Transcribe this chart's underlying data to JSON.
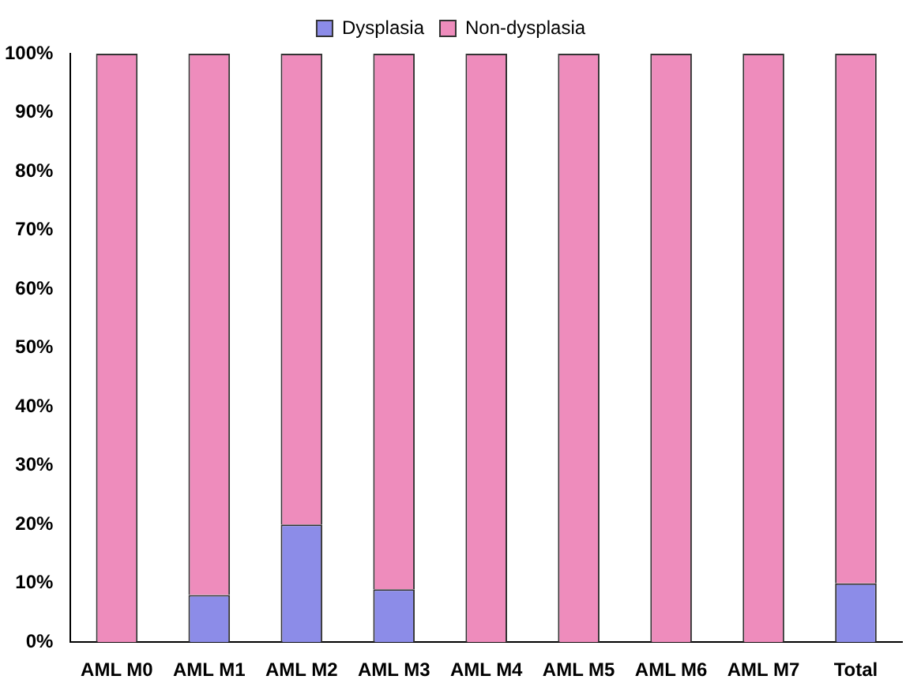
{
  "chart_data": {
    "type": "bar",
    "stacked": true,
    "legend": "top",
    "grid": false,
    "categories": [
      "AML M0",
      "AML M1",
      "AML M2",
      "AML M3",
      "AML M4",
      "AML M5",
      "AML M6",
      "AML M7",
      "Total"
    ],
    "series": [
      {
        "name": "Dysplasia",
        "color": "#8c8ce8",
        "values": [
          0,
          8,
          20,
          9,
          0,
          0,
          0,
          0,
          10
        ]
      },
      {
        "name": "Non-dysplasia",
        "color": "#ee8cbc",
        "values": [
          100,
          92,
          80,
          91,
          100,
          100,
          100,
          100,
          90
        ]
      }
    ],
    "ylim": [
      0,
      100
    ],
    "yticks": [
      {
        "value": 0,
        "label": "0%"
      },
      {
        "value": 10,
        "label": "10%"
      },
      {
        "value": 20,
        "label": "20%"
      },
      {
        "value": 30,
        "label": "30%"
      },
      {
        "value": 40,
        "label": "40%"
      },
      {
        "value": 50,
        "label": "50%"
      },
      {
        "value": 60,
        "label": "60%"
      },
      {
        "value": 70,
        "label": "70%"
      },
      {
        "value": 80,
        "label": "80%"
      },
      {
        "value": 90,
        "label": "90%"
      },
      {
        "value": 100,
        "label": "100%"
      }
    ]
  }
}
